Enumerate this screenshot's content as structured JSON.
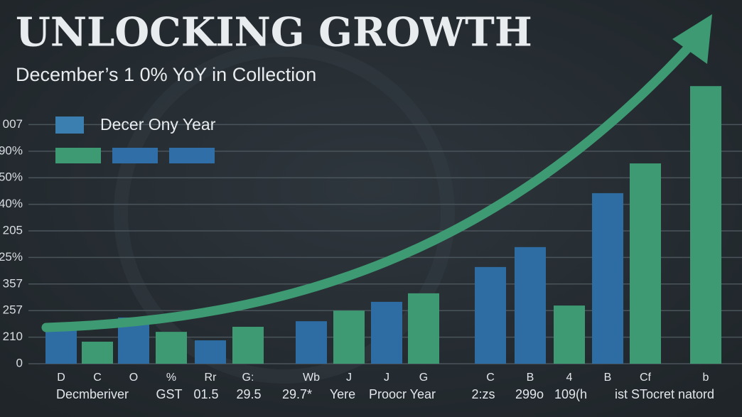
{
  "chart_data": {
    "type": "bar",
    "title": "UNLOCKING GROWTH",
    "subtitle": "December’s 1 0% YoY in  Collection",
    "legend": [
      "Decer Ony Year"
    ],
    "legend_colors": [
      "#3a7fb0",
      "#3d9a72",
      "#2f6ea6",
      "#2f6ea6"
    ],
    "categories": [
      "D",
      "C",
      "O",
      "%",
      "Rr",
      "G:",
      "Wb",
      "J",
      "J",
      "G",
      "C",
      "B",
      "4",
      "B",
      "Cf",
      "b"
    ],
    "values": [
      1.31,
      0.83,
      1.74,
      1.2,
      0.88,
      1.39,
      1.6,
      2.0,
      2.33,
      2.65,
      3.64,
      4.39,
      2.19,
      6.42,
      7.54,
      10.45
    ],
    "colors": [
      "#2e6da4",
      "#3d9a72",
      "#2e6da4",
      "#3d9a72",
      "#2e6da4",
      "#3d9a72",
      "#2e6da4",
      "#3d9a72",
      "#2e6da4",
      "#3d9a72",
      "#2e6da4",
      "#2e6da4",
      "#3d9a72",
      "#2e6da4",
      "#3d9a72",
      "#3d9a72"
    ],
    "sublabels": [
      "Decmberiver",
      "GST",
      "01.5",
      "29.5",
      "29.7*",
      "Yere",
      "Proocr Year",
      "2:zs",
      "299o",
      "109(h",
      "ist STocret natord"
    ],
    "ylim": [
      0,
      10.6
    ],
    "yticks": [
      0,
      {
        "value": 1,
        "label": "210"
      },
      {
        "value": 2,
        "label": "257"
      },
      {
        "value": 3,
        "label": "357"
      },
      {
        "value": 4,
        "label": "25%"
      },
      {
        "value": 5,
        "label": "205"
      },
      {
        "value": 6,
        "label": "40%"
      },
      {
        "value": 7,
        "label": "50%"
      },
      {
        "value": 8,
        "label": "90%"
      },
      {
        "value": 9,
        "label": "007"
      }
    ],
    "grid": true
  }
}
